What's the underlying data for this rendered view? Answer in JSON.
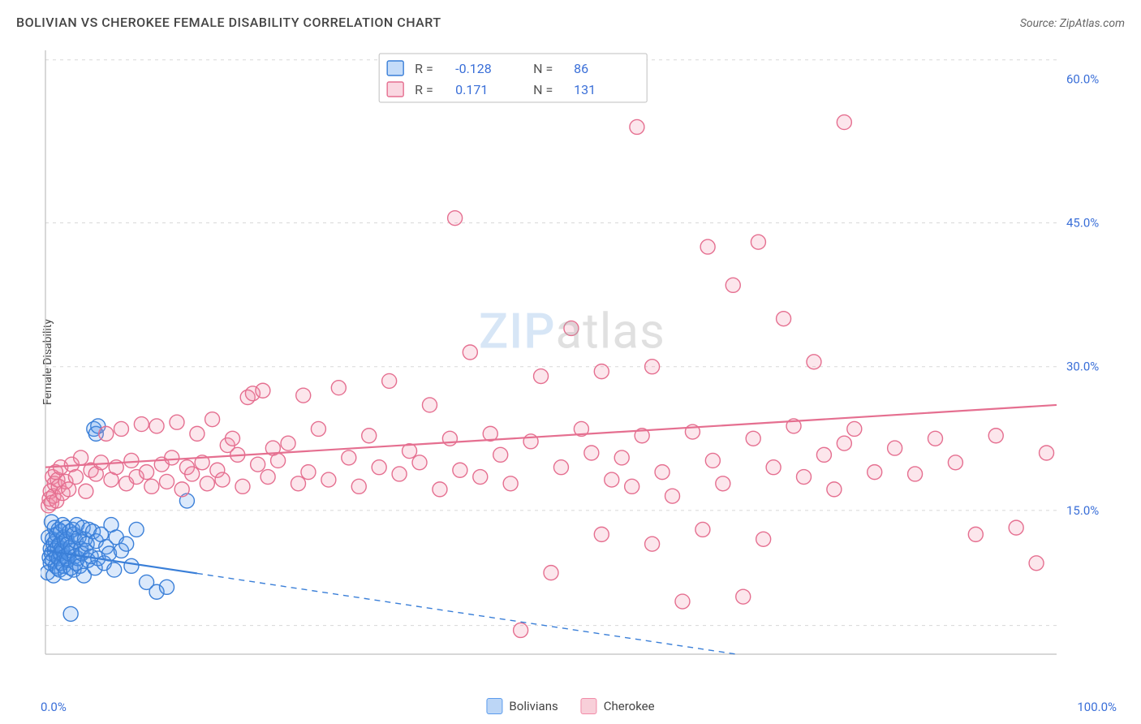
{
  "title": "BOLIVIAN VS CHEROKEE FEMALE DISABILITY CORRELATION CHART",
  "source_label": "Source: ZipAtlas.com",
  "y_axis_label": "Female Disability",
  "watermark": {
    "part1": "ZIP",
    "part2": "atlas"
  },
  "chart": {
    "type": "scatter",
    "background_color": "#ffffff",
    "grid_color": "#d8d8d8",
    "axis_color": "#bfbfbf",
    "text_color": "#444444",
    "tick_color": "#3a6fd8",
    "xlim": [
      0,
      100
    ],
    "ylim": [
      0,
      63
    ],
    "x_ticks": [
      {
        "value": 0,
        "label": "0.0%"
      },
      {
        "value": 100,
        "label": "100.0%"
      }
    ],
    "y_ticks": [
      {
        "value": 15,
        "label": "15.0%"
      },
      {
        "value": 30,
        "label": "30.0%"
      },
      {
        "value": 45,
        "label": "45.0%"
      },
      {
        "value": 60,
        "label": "60.0%"
      }
    ],
    "y_gridlines": [
      3,
      15,
      30,
      45,
      62
    ],
    "marker_radius": 9,
    "marker_stroke_width": 1.4,
    "marker_fill_opacity": 0.22,
    "trend_line_width": 2.2,
    "series": [
      {
        "name": "Bolivians",
        "color": "#5a9bed",
        "stroke_color": "#3a7fd8",
        "R": "-0.128",
        "N": "86",
        "trend": {
          "x1": 0,
          "y1": 10.8,
          "x2": 100,
          "y2": -5,
          "solid_until_x": 15
        },
        "points": [
          [
            0.2,
            8.5
          ],
          [
            0.3,
            12.2
          ],
          [
            0.4,
            10.1
          ],
          [
            0.5,
            9.5
          ],
          [
            0.5,
            11.0
          ],
          [
            0.6,
            10.5
          ],
          [
            0.6,
            13.8
          ],
          [
            0.7,
            9.8
          ],
          [
            0.7,
            12.0
          ],
          [
            0.8,
            11.5
          ],
          [
            0.8,
            8.2
          ],
          [
            0.9,
            10.8
          ],
          [
            0.9,
            13.2
          ],
          [
            1.0,
            9.2
          ],
          [
            1.0,
            11.8
          ],
          [
            1.1,
            10.2
          ],
          [
            1.1,
            12.5
          ],
          [
            1.2,
            9.0
          ],
          [
            1.2,
            11.2
          ],
          [
            1.3,
            10.0
          ],
          [
            1.3,
            13.0
          ],
          [
            1.4,
            8.8
          ],
          [
            1.4,
            11.5
          ],
          [
            1.5,
            10.5
          ],
          [
            1.5,
            12.8
          ],
          [
            1.6,
            9.5
          ],
          [
            1.6,
            11.0
          ],
          [
            1.7,
            10.8
          ],
          [
            1.7,
            13.5
          ],
          [
            1.8,
            9.2
          ],
          [
            1.8,
            12.2
          ],
          [
            1.9,
            10.2
          ],
          [
            1.9,
            11.8
          ],
          [
            2.0,
            8.5
          ],
          [
            2.0,
            13.2
          ],
          [
            2.1,
            10.0
          ],
          [
            2.1,
            12.0
          ],
          [
            2.2,
            9.8
          ],
          [
            2.2,
            11.5
          ],
          [
            2.3,
            10.5
          ],
          [
            2.4,
            12.8
          ],
          [
            2.5,
            9.0
          ],
          [
            2.5,
            11.2
          ],
          [
            2.6,
            10.8
          ],
          [
            2.7,
            13.0
          ],
          [
            2.8,
            8.8
          ],
          [
            2.8,
            12.5
          ],
          [
            2.9,
            10.2
          ],
          [
            3.0,
            11.8
          ],
          [
            3.0,
            9.5
          ],
          [
            3.1,
            13.5
          ],
          [
            3.2,
            10.0
          ],
          [
            3.3,
            12.2
          ],
          [
            3.4,
            9.2
          ],
          [
            3.5,
            11.0
          ],
          [
            3.6,
            10.5
          ],
          [
            3.7,
            13.2
          ],
          [
            3.8,
            8.2
          ],
          [
            3.9,
            12.0
          ],
          [
            4.0,
            10.8
          ],
          [
            4.1,
            11.5
          ],
          [
            4.2,
            9.8
          ],
          [
            4.3,
            13.0
          ],
          [
            4.5,
            10.2
          ],
          [
            4.7,
            12.8
          ],
          [
            4.9,
            9.0
          ],
          [
            5.0,
            11.8
          ],
          [
            5.2,
            10.0
          ],
          [
            5.5,
            12.5
          ],
          [
            5.8,
            9.5
          ],
          [
            6.0,
            11.2
          ],
          [
            6.3,
            10.5
          ],
          [
            6.5,
            13.5
          ],
          [
            6.8,
            8.8
          ],
          [
            7.0,
            12.2
          ],
          [
            7.5,
            10.8
          ],
          [
            8.0,
            11.5
          ],
          [
            8.5,
            9.2
          ],
          [
            9.0,
            13.0
          ],
          [
            10.0,
            7.5
          ],
          [
            11.0,
            6.5
          ],
          [
            12.0,
            7.0
          ],
          [
            4.8,
            23.5
          ],
          [
            5.0,
            23.0
          ],
          [
            5.2,
            23.8
          ],
          [
            14.0,
            16.0
          ],
          [
            2.5,
            4.2
          ]
        ]
      },
      {
        "name": "Cherokee",
        "color": "#f28ba8",
        "stroke_color": "#e56f90",
        "R": "0.171",
        "N": "131",
        "trend": {
          "x1": 0,
          "y1": 19.5,
          "x2": 100,
          "y2": 26.0,
          "solid_until_x": 100
        },
        "points": [
          [
            0.3,
            15.5
          ],
          [
            0.4,
            16.2
          ],
          [
            0.5,
            17.0
          ],
          [
            0.6,
            15.8
          ],
          [
            0.7,
            18.5
          ],
          [
            0.8,
            16.5
          ],
          [
            0.9,
            17.8
          ],
          [
            1.0,
            19.0
          ],
          [
            1.1,
            16.0
          ],
          [
            1.2,
            18.2
          ],
          [
            1.3,
            17.5
          ],
          [
            1.5,
            19.5
          ],
          [
            1.7,
            16.8
          ],
          [
            2.0,
            18.0
          ],
          [
            2.3,
            17.2
          ],
          [
            2.6,
            19.8
          ],
          [
            3.0,
            18.5
          ],
          [
            3.5,
            20.5
          ],
          [
            4.0,
            17.0
          ],
          [
            4.5,
            19.2
          ],
          [
            5.0,
            18.8
          ],
          [
            5.5,
            20.0
          ],
          [
            6.0,
            23.0
          ],
          [
            6.5,
            18.2
          ],
          [
            7.0,
            19.5
          ],
          [
            7.5,
            23.5
          ],
          [
            8.0,
            17.8
          ],
          [
            8.5,
            20.2
          ],
          [
            9.0,
            18.5
          ],
          [
            9.5,
            24.0
          ],
          [
            10.0,
            19.0
          ],
          [
            10.5,
            17.5
          ],
          [
            11.0,
            23.8
          ],
          [
            11.5,
            19.8
          ],
          [
            12.0,
            18.0
          ],
          [
            12.5,
            20.5
          ],
          [
            13.0,
            24.2
          ],
          [
            13.5,
            17.2
          ],
          [
            14.0,
            19.5
          ],
          [
            14.5,
            18.8
          ],
          [
            15.0,
            23.0
          ],
          [
            15.5,
            20.0
          ],
          [
            16.0,
            17.8
          ],
          [
            16.5,
            24.5
          ],
          [
            17.0,
            19.2
          ],
          [
            17.5,
            18.2
          ],
          [
            18.0,
            21.8
          ],
          [
            18.5,
            22.5
          ],
          [
            19.0,
            20.8
          ],
          [
            19.5,
            17.5
          ],
          [
            20.0,
            26.8
          ],
          [
            20.5,
            27.2
          ],
          [
            21.0,
            19.8
          ],
          [
            21.5,
            27.5
          ],
          [
            22.0,
            18.5
          ],
          [
            22.5,
            21.5
          ],
          [
            23.0,
            20.2
          ],
          [
            24.0,
            22.0
          ],
          [
            25.0,
            17.8
          ],
          [
            25.5,
            27.0
          ],
          [
            26.0,
            19.0
          ],
          [
            27.0,
            23.5
          ],
          [
            28.0,
            18.2
          ],
          [
            29.0,
            27.8
          ],
          [
            30.0,
            20.5
          ],
          [
            31.0,
            17.5
          ],
          [
            32.0,
            22.8
          ],
          [
            33.0,
            19.5
          ],
          [
            34.0,
            28.5
          ],
          [
            35.0,
            18.8
          ],
          [
            36.0,
            21.2
          ],
          [
            37.0,
            20.0
          ],
          [
            38.0,
            26.0
          ],
          [
            39.0,
            17.2
          ],
          [
            40.0,
            22.5
          ],
          [
            40.5,
            45.5
          ],
          [
            41.0,
            19.2
          ],
          [
            42.0,
            31.5
          ],
          [
            43.0,
            18.5
          ],
          [
            44.0,
            23.0
          ],
          [
            45.0,
            20.8
          ],
          [
            46.0,
            17.8
          ],
          [
            47.0,
            2.5
          ],
          [
            48.0,
            22.2
          ],
          [
            49.0,
            29.0
          ],
          [
            50.0,
            8.5
          ],
          [
            51.0,
            19.5
          ],
          [
            52.0,
            34.0
          ],
          [
            53.0,
            23.5
          ],
          [
            54.0,
            21.0
          ],
          [
            55.0,
            12.5
          ],
          [
            55.0,
            29.5
          ],
          [
            56.0,
            18.2
          ],
          [
            57.0,
            20.5
          ],
          [
            58.0,
            17.5
          ],
          [
            58.5,
            55.0
          ],
          [
            59.0,
            22.8
          ],
          [
            60.0,
            11.5
          ],
          [
            60.0,
            30.0
          ],
          [
            61.0,
            19.0
          ],
          [
            62.0,
            16.5
          ],
          [
            63.0,
            5.5
          ],
          [
            64.0,
            23.2
          ],
          [
            65.0,
            13.0
          ],
          [
            65.5,
            42.5
          ],
          [
            66.0,
            20.2
          ],
          [
            67.0,
            17.8
          ],
          [
            68.0,
            38.5
          ],
          [
            69.0,
            6.0
          ],
          [
            70.0,
            22.5
          ],
          [
            70.5,
            43.0
          ],
          [
            71.0,
            12.0
          ],
          [
            72.0,
            19.5
          ],
          [
            73.0,
            35.0
          ],
          [
            74.0,
            23.8
          ],
          [
            75.0,
            18.5
          ],
          [
            76.0,
            30.5
          ],
          [
            77.0,
            20.8
          ],
          [
            78.0,
            17.2
          ],
          [
            79.0,
            22.0
          ],
          [
            79.0,
            55.5
          ],
          [
            80.0,
            23.5
          ],
          [
            82.0,
            19.0
          ],
          [
            84.0,
            21.5
          ],
          [
            86.0,
            18.8
          ],
          [
            88.0,
            22.5
          ],
          [
            90.0,
            20.0
          ],
          [
            92.0,
            12.5
          ],
          [
            94.0,
            22.8
          ],
          [
            96.0,
            13.2
          ],
          [
            98.0,
            9.5
          ],
          [
            99.0,
            21.0
          ]
        ]
      }
    ]
  },
  "stats_legend": {
    "border_color": "#bfbfbf",
    "label_color": "#555555",
    "value_color": "#3a6fd8",
    "r_label": "R  =",
    "n_label": "N  ="
  },
  "bottom_legend": {
    "items": [
      {
        "label": "Bolivians",
        "fill": "#bcd6f6",
        "stroke": "#5a9bed"
      },
      {
        "label": "Cherokee",
        "fill": "#f8cfd9",
        "stroke": "#f28ba8"
      }
    ]
  }
}
